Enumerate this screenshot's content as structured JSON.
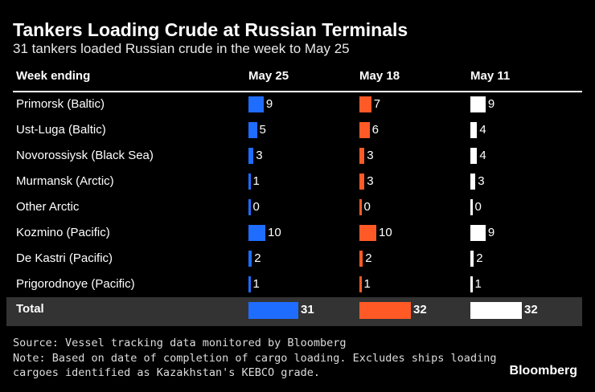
{
  "title": "Tankers Loading Crude at Russian Terminals",
  "subtitle": "31 tankers loaded Russian crude in the week to May 25",
  "header": {
    "row_label": "Week ending",
    "columns": [
      "May 25",
      "May 18",
      "May 11"
    ]
  },
  "colors": [
    "#1f6dff",
    "#ff5a26",
    "#ffffff"
  ],
  "chart_data": {
    "type": "bar",
    "categories": [
      "Primorsk (Baltic)",
      "Ust-Luga (Baltic)",
      "Novorossiysk (Black Sea)",
      "Murmansk (Arctic)",
      "Other Arctic",
      "Kozmino (Pacific)",
      "De Kastri (Pacific)",
      "Prigorodnoye (Pacific)"
    ],
    "series": [
      {
        "name": "May 25",
        "values": [
          9,
          5,
          3,
          1,
          0,
          10,
          2,
          1
        ],
        "total": 31
      },
      {
        "name": "May 18",
        "values": [
          7,
          6,
          3,
          3,
          0,
          10,
          2,
          1
        ],
        "total": 32
      },
      {
        "name": "May 11",
        "values": [
          9,
          4,
          4,
          3,
          0,
          9,
          2,
          1
        ],
        "total": 32
      }
    ],
    "total_label": "Total",
    "title": "Tankers Loading Crude at Russian Terminals",
    "subtitle": "31 tankers loaded Russian crude in the week to May 25"
  },
  "footer": {
    "source": "Source: Vessel tracking data monitored by Bloomberg",
    "note_line1": "Note: Based on date of completion of cargo loading. Excludes ships loading",
    "note_line2": "cargoes identified as Kazakhstan's KEBCO grade.",
    "brand": "Bloomberg"
  }
}
